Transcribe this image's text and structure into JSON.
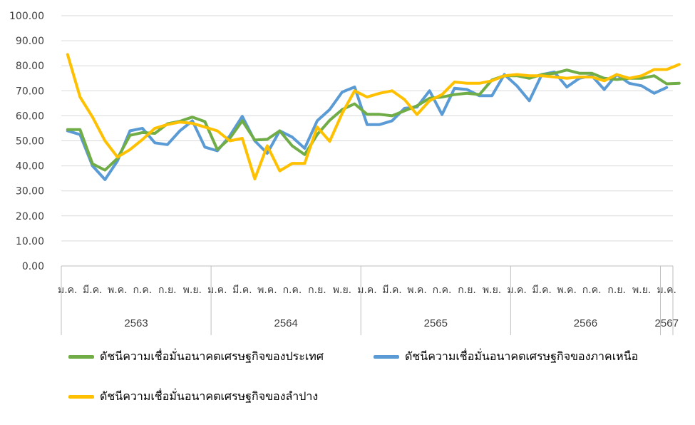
{
  "chart_data": {
    "type": "line",
    "yticks": [
      "0.00",
      "10.00",
      "20.00",
      "30.00",
      "40.00",
      "50.00",
      "60.00",
      "70.00",
      "80.00",
      "90.00",
      "100.00"
    ],
    "ylim": [
      0,
      100
    ],
    "month_labels": [
      "ม.ค.",
      "มี.ค.",
      "พ.ค.",
      "ก.ค.",
      "ก.ย.",
      "พ.ย.",
      "ม.ค.",
      "มี.ค.",
      "พ.ค.",
      "ก.ค.",
      "ก.ย.",
      "พ.ย.",
      "ม.ค.",
      "มี.ค.",
      "พ.ค.",
      "ก.ค.",
      "ก.ย.",
      "พ.ย.",
      "ม.ค.",
      "มี.ค.",
      "พ.ค.",
      "ก.ค.",
      "ก.ย.",
      "พ.ย.",
      "ม.ค."
    ],
    "years": [
      "2563",
      "2564",
      "2565",
      "2566",
      "2567"
    ],
    "grid": true,
    "legend_position": "bottom",
    "series": [
      {
        "name": "ดัชนีความเชื่อมั่นอนาคตเศรษฐกิจของประเทศ",
        "color": "#70ad47",
        "values": [
          54.5,
          54.5,
          40.8,
          38.3,
          43.0,
          52.2,
          53.3,
          53.0,
          56.8,
          57.8,
          59.5,
          57.7,
          46.5,
          51.0,
          58.0,
          50.3,
          50.6,
          54.0,
          48.0,
          44.5,
          52.5,
          58.2,
          62.5,
          64.8,
          60.6,
          60.6,
          60.0,
          62.0,
          64.0,
          67.0,
          67.5,
          68.5,
          69.0,
          68.5,
          74.3,
          76.0,
          76.0,
          75.0,
          76.5,
          77.0,
          78.3,
          77.0,
          77.0,
          75.0,
          74.5,
          75.0,
          75.0,
          76.0,
          72.8,
          73.0
        ]
      },
      {
        "name": "ดัชนีความเชื่อมั่นอนาคตเศรษฐกิจของภาคเหนือ",
        "color": "#5b9bd5",
        "values": [
          54.0,
          52.5,
          40.0,
          34.5,
          42.0,
          54.0,
          55.0,
          49.2,
          48.5,
          54.0,
          58.0,
          47.5,
          46.0,
          52.0,
          59.8,
          50.0,
          45.0,
          54.0,
          51.5,
          47.0,
          58.0,
          62.5,
          69.5,
          71.5,
          56.5,
          56.5,
          58.0,
          63.0,
          63.5,
          70.0,
          60.5,
          71.0,
          70.5,
          68.0,
          68.0,
          76.5,
          72.0,
          66.0,
          76.5,
          77.5,
          71.5,
          75.0,
          76.0,
          70.5,
          76.5,
          73.0,
          72.0,
          69.0,
          71.3
        ]
      },
      {
        "name": "ดัชนีความเชื่อมั่นอนาคตเศรษฐกิจของลำปาง",
        "color": "#ffc000",
        "values": [
          84.5,
          67.5,
          59.5,
          50.0,
          43.5,
          46.5,
          50.5,
          55.0,
          56.5,
          57.5,
          57.0,
          55.5,
          54.0,
          50.0,
          51.0,
          34.8,
          48.0,
          38.0,
          41.0,
          41.0,
          55.5,
          49.8,
          61.0,
          70.0,
          67.5,
          69.0,
          70.0,
          66.5,
          60.5,
          66.0,
          68.5,
          73.5,
          73.0,
          73.0,
          74.0,
          76.0,
          76.5,
          76.0,
          76.0,
          75.5,
          75.0,
          75.5,
          75.5,
          74.0,
          76.5,
          75.0,
          76.0,
          78.5,
          78.5,
          80.5
        ]
      }
    ]
  }
}
